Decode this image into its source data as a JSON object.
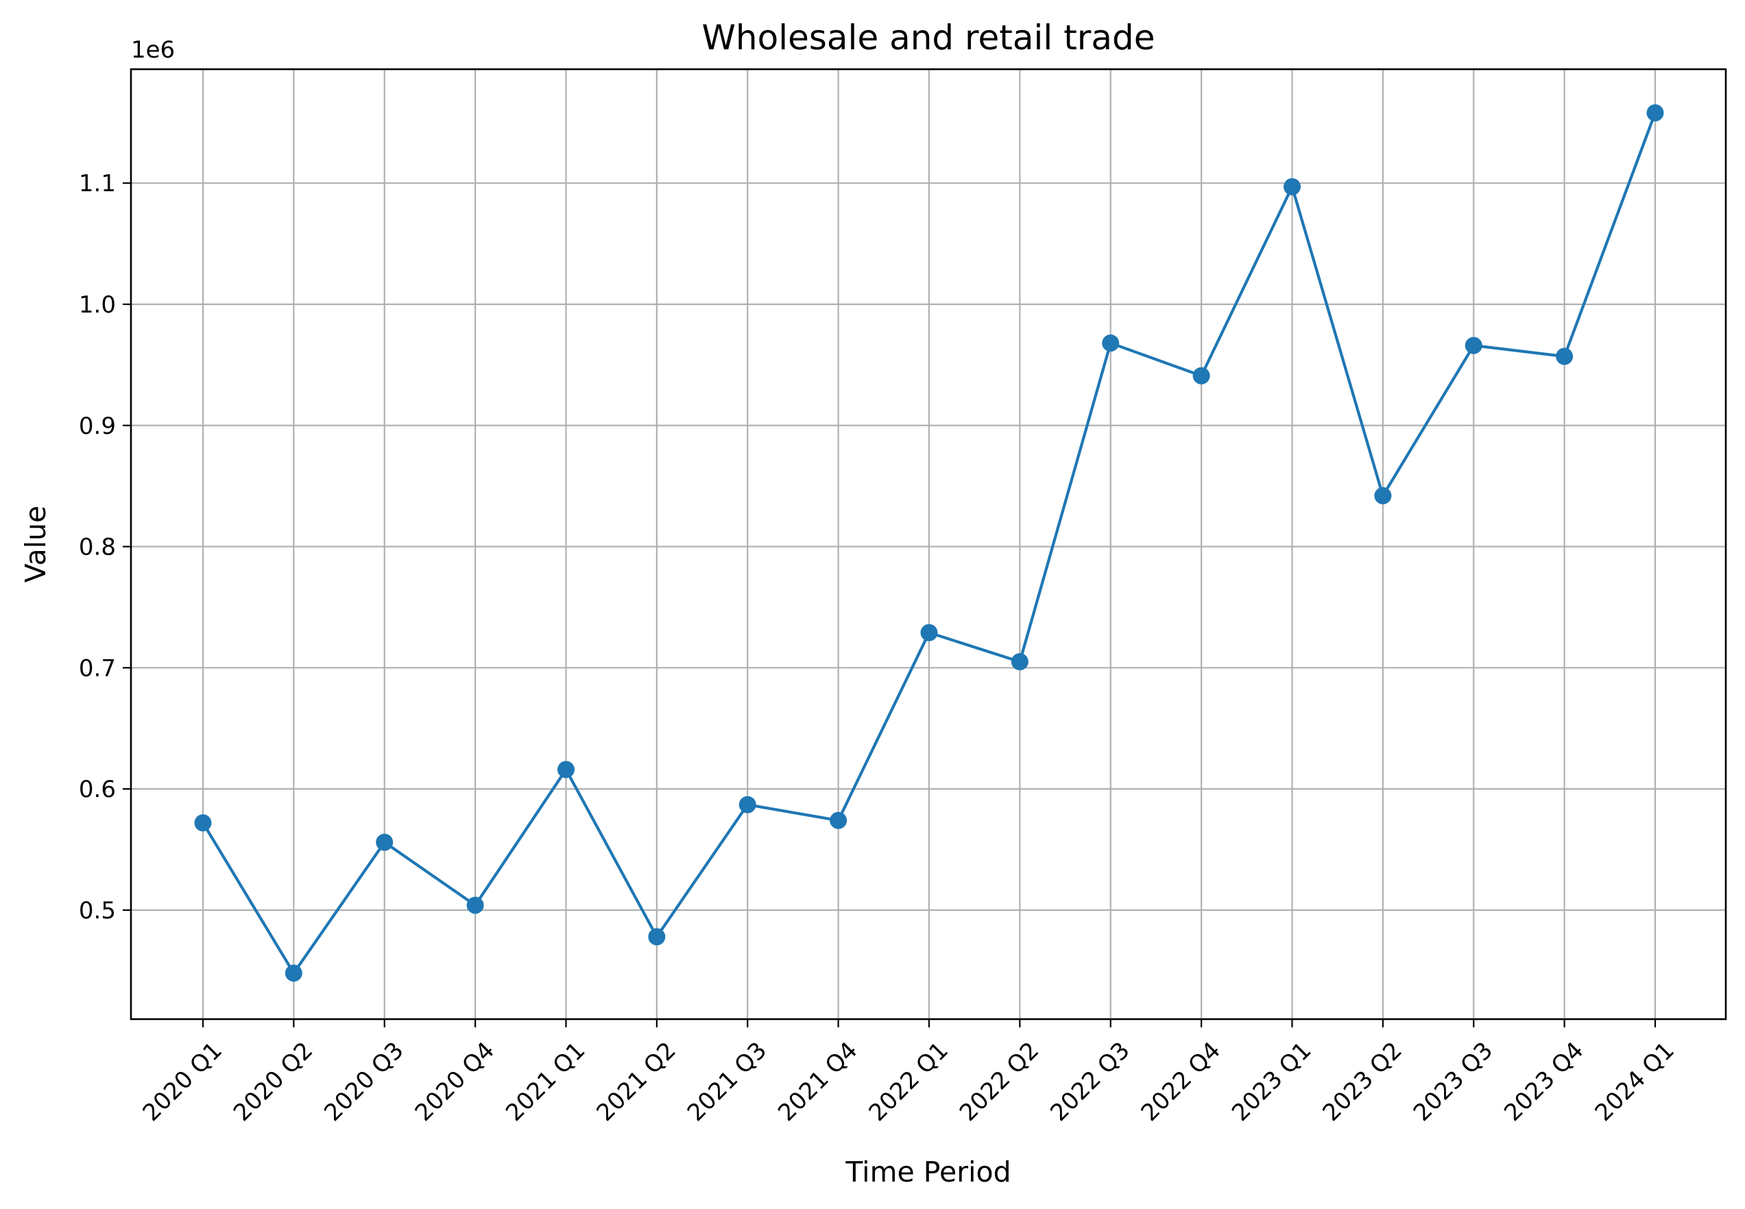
{
  "chart_data": {
    "type": "line",
    "title": "Wholesale and retail trade",
    "xlabel": "Time Period",
    "ylabel": "Value",
    "y_offset_label": "1e6",
    "y_multiplier": 1000000,
    "categories": [
      "2020 Q1",
      "2020 Q2",
      "2020 Q3",
      "2020 Q4",
      "2021 Q1",
      "2021 Q2",
      "2021 Q3",
      "2021 Q4",
      "2022 Q1",
      "2022 Q2",
      "2022 Q3",
      "2022 Q4",
      "2023 Q1",
      "2023 Q2",
      "2023 Q3",
      "2023 Q4",
      "2024 Q1"
    ],
    "series": [
      {
        "values": [
          572000,
          448000,
          556000,
          504000,
          616000,
          478000,
          587000,
          574000,
          729000,
          705000,
          968000,
          941000,
          1097000,
          842000,
          966000,
          957000,
          1158000
        ],
        "color": "#1f77b4"
      }
    ],
    "ylim": [
      410000,
      1194000
    ],
    "yticks": [
      500000,
      600000,
      700000,
      800000,
      900000,
      1000000,
      1100000
    ],
    "ytick_labels": [
      "0.5",
      "0.6",
      "0.7",
      "0.8",
      "0.9",
      "1.0",
      "1.1"
    ],
    "grid": true,
    "legend": "none"
  }
}
